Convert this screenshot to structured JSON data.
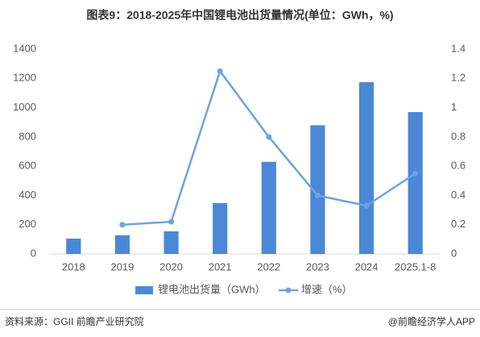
{
  "title": "图表9：2018-2025年中国锂电池出货量情况(单位：GWh，%)",
  "source": "资料来源：GGII 前瞻产业研究院",
  "brand": "@前瞻经济学人APP",
  "chart_data": {
    "type": "bar-line",
    "categories": [
      "2018",
      "2019",
      "2020",
      "2021",
      "2022",
      "2023",
      "2024",
      "2025.1-8"
    ],
    "series": [
      {
        "name": "锂电池出货量（GWh）",
        "type": "bar",
        "color": "#4a88d6",
        "values": [
          105,
          128,
          155,
          348,
          630,
          880,
          1175,
          970
        ]
      },
      {
        "name": "增速（%）",
        "type": "line",
        "axis": "y2",
        "color": "#6fa2dd",
        "values": [
          null,
          0.2,
          0.22,
          1.25,
          0.8,
          0.4,
          0.33,
          0.55
        ]
      }
    ],
    "ylim": [
      0,
      1400
    ],
    "yticks": [
      0,
      200,
      400,
      600,
      800,
      1000,
      1200,
      1400
    ],
    "y2lim": [
      0,
      1.4
    ],
    "y2ticks": [
      0,
      0.2,
      0.4,
      0.6,
      0.8,
      1,
      1.2,
      1.4
    ],
    "grid": false,
    "legend": "bottom"
  }
}
